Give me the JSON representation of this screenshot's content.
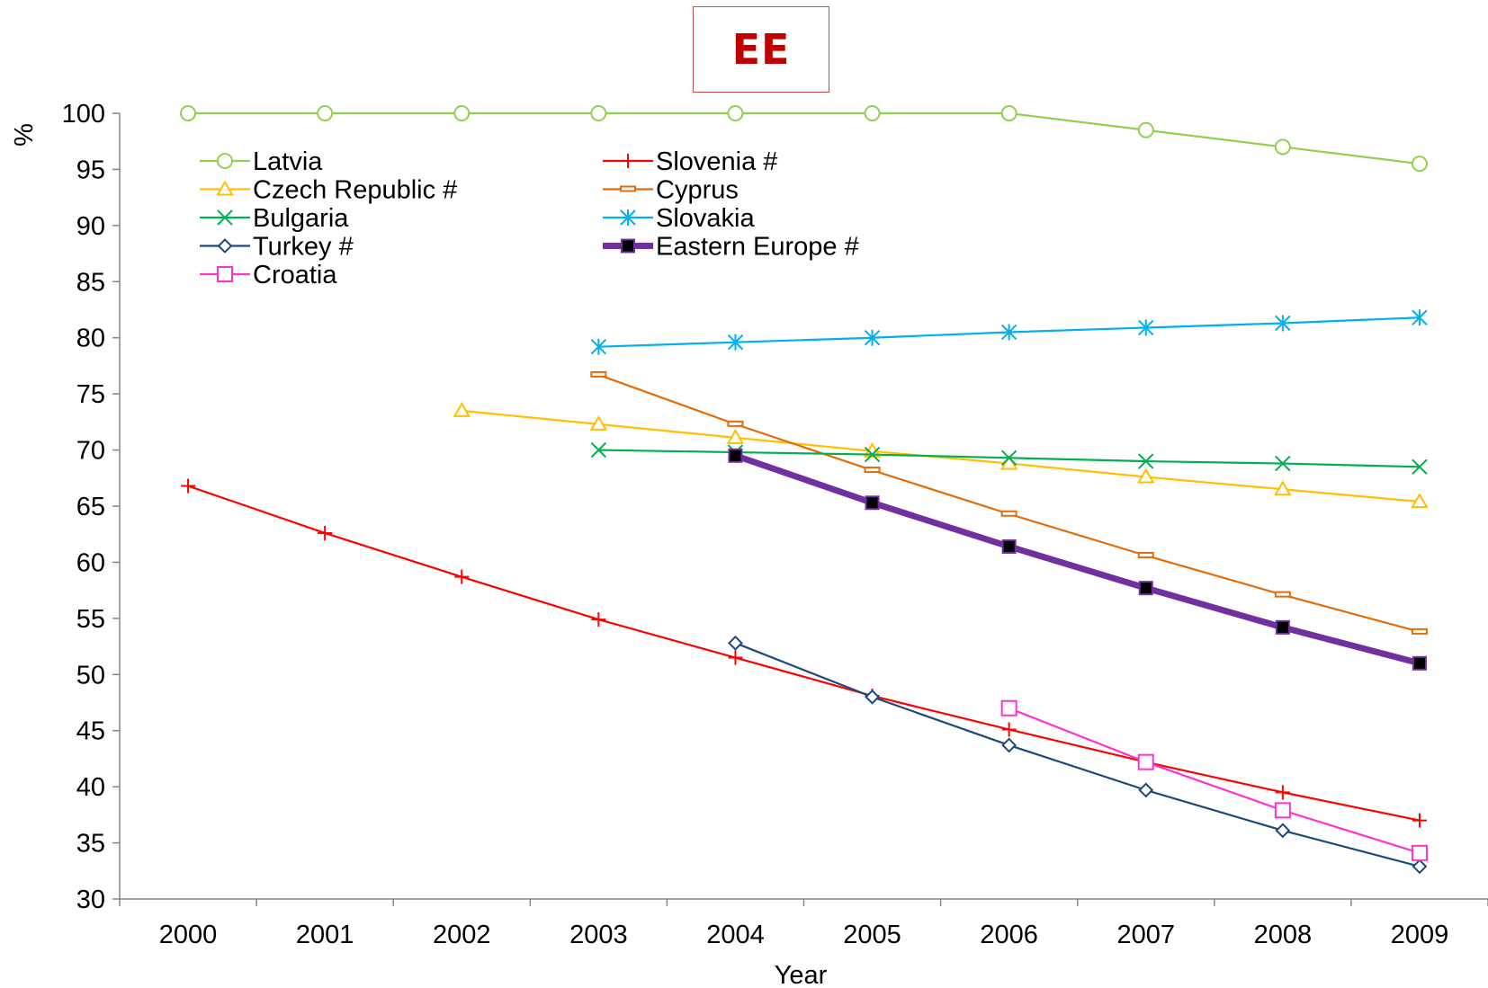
{
  "chart_data": {
    "type": "line",
    "title": "EE",
    "xlabel": "Year",
    "ylabel": "%",
    "ylim": [
      30,
      100
    ],
    "yticks": [
      "30",
      "35",
      "40",
      "45",
      "50",
      "55",
      "60",
      "65",
      "70",
      "75",
      "80",
      "85",
      "90",
      "95",
      "100"
    ],
    "categories": [
      "2000",
      "2001",
      "2002",
      "2003",
      "2004",
      "2005",
      "2006",
      "2007",
      "2008",
      "2009"
    ],
    "grid": false,
    "legend_position": "top-left",
    "series": [
      {
        "name": "Latvia",
        "color": "#92d050",
        "marker": "circle",
        "values": [
          100,
          100,
          100,
          100,
          100,
          100,
          100,
          98.5,
          97,
          95.5
        ]
      },
      {
        "name": "Slovenia #",
        "color": "#ff0000",
        "marker": "plus",
        "values": [
          66.8,
          62.6,
          58.7,
          54.9,
          51.5,
          48.1,
          45.1,
          42.2,
          39.5,
          37
        ]
      },
      {
        "name": "Czech Republic #",
        "color": "#ffc000",
        "marker": "triangle",
        "values": [
          null,
          null,
          73.5,
          72.3,
          71.1,
          69.9,
          68.8,
          67.6,
          66.5,
          65.4
        ]
      },
      {
        "name": "Cyprus",
        "color": "#e36c09",
        "marker": "dash",
        "values": [
          null,
          null,
          null,
          76.7,
          72.3,
          68.2,
          64.3,
          60.6,
          57.1,
          53.8
        ]
      },
      {
        "name": "Bulgaria",
        "color": "#00b050",
        "marker": "x",
        "values": [
          null,
          null,
          null,
          70,
          69.8,
          69.6,
          69.3,
          69,
          68.8,
          68.5
        ]
      },
      {
        "name": "Slovakia",
        "color": "#00b0f0",
        "marker": "star",
        "values": [
          null,
          null,
          null,
          79.2,
          79.6,
          80,
          80.5,
          80.9,
          81.3,
          81.8
        ]
      },
      {
        "name": "Turkey #",
        "color": "#1f497d",
        "marker": "diamond",
        "values": [
          null,
          null,
          null,
          null,
          52.8,
          48,
          43.7,
          39.7,
          36.1,
          32.9
        ]
      },
      {
        "name": "Eastern Europe #",
        "color": "#7030a0",
        "marker": "square-filled",
        "thick": true,
        "values": [
          null,
          null,
          null,
          null,
          69.5,
          65.3,
          61.4,
          57.7,
          54.2,
          51
        ]
      },
      {
        "name": "Croatia",
        "color": "#ff33cc",
        "marker": "square",
        "values": [
          null,
          null,
          null,
          null,
          null,
          null,
          47,
          42.2,
          37.9,
          34.1
        ]
      }
    ]
  }
}
